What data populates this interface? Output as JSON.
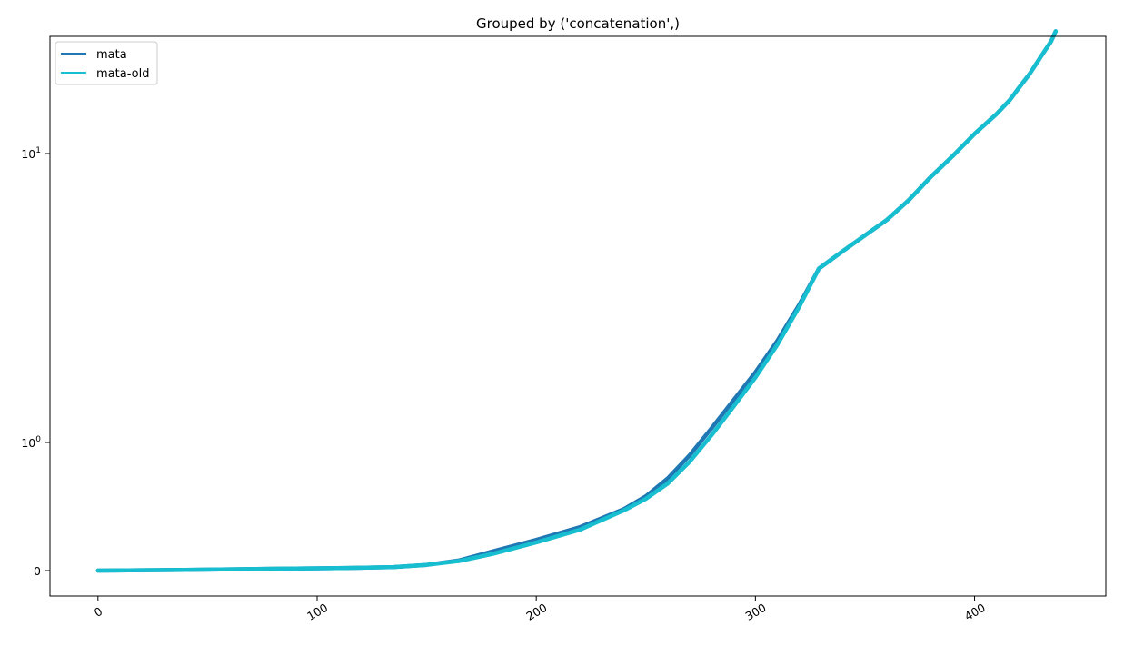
{
  "chart_data": {
    "type": "line",
    "title": "Grouped by ('concatenation',)",
    "xlabel": "",
    "ylabel": "",
    "xlim": [
      -21.9,
      459.9
    ],
    "x_ticks": [
      0,
      100,
      200,
      300,
      400
    ],
    "y_scale": "symlog",
    "y_tick_values": [
      0,
      1,
      10
    ],
    "y_ticks": [
      "0",
      "10",
      "10"
    ],
    "y_tick_exponents": [
      "",
      "0",
      "1"
    ],
    "legend": "upper-left",
    "grid": false,
    "series": [
      {
        "name": "mata",
        "color": "#1f77b4",
        "points": [
          [
            0,
            0
          ],
          [
            20,
            0.003
          ],
          [
            40,
            0.006
          ],
          [
            60,
            0.01
          ],
          [
            80,
            0.014
          ],
          [
            100,
            0.018
          ],
          [
            120,
            0.022
          ],
          [
            135,
            0.028
          ],
          [
            150,
            0.045
          ],
          [
            165,
            0.08
          ],
          [
            180,
            0.15
          ],
          [
            200,
            0.24
          ],
          [
            220,
            0.34
          ],
          [
            240,
            0.48
          ],
          [
            250,
            0.58
          ],
          [
            260,
            0.72
          ],
          [
            270,
            0.9
          ],
          [
            280,
            1.12
          ],
          [
            290,
            1.4
          ],
          [
            300,
            1.75
          ],
          [
            310,
            2.25
          ],
          [
            320,
            3.0
          ],
          [
            329,
            4.0
          ],
          [
            340,
            4.6
          ],
          [
            360,
            5.9
          ],
          [
            370,
            6.9
          ],
          [
            380,
            8.3
          ],
          [
            390,
            9.8
          ],
          [
            400,
            11.7
          ],
          [
            410,
            13.7
          ],
          [
            416,
            15.3
          ],
          [
            420,
            16.8
          ],
          [
            425,
            18.8
          ],
          [
            430,
            21.5
          ],
          [
            435,
            24.5
          ],
          [
            437,
            26.5
          ]
        ]
      },
      {
        "name": "mata-old",
        "color": "#17becf",
        "points": [
          [
            0,
            0
          ],
          [
            20,
            0.003
          ],
          [
            40,
            0.006
          ],
          [
            60,
            0.01
          ],
          [
            80,
            0.014
          ],
          [
            100,
            0.018
          ],
          [
            120,
            0.022
          ],
          [
            135,
            0.028
          ],
          [
            150,
            0.045
          ],
          [
            165,
            0.075
          ],
          [
            180,
            0.13
          ],
          [
            200,
            0.22
          ],
          [
            220,
            0.32
          ],
          [
            240,
            0.47
          ],
          [
            250,
            0.56
          ],
          [
            260,
            0.68
          ],
          [
            270,
            0.85
          ],
          [
            280,
            1.06
          ],
          [
            290,
            1.33
          ],
          [
            300,
            1.68
          ],
          [
            310,
            2.18
          ],
          [
            320,
            2.95
          ],
          [
            329,
            4.0
          ],
          [
            340,
            4.6
          ],
          [
            360,
            5.9
          ],
          [
            370,
            6.9
          ],
          [
            380,
            8.3
          ],
          [
            390,
            9.8
          ],
          [
            400,
            11.7
          ],
          [
            410,
            13.7
          ],
          [
            416,
            15.3
          ],
          [
            420,
            16.8
          ],
          [
            425,
            18.8
          ],
          [
            430,
            21.5
          ],
          [
            435,
            24.5
          ],
          [
            437,
            26.5
          ]
        ]
      }
    ]
  }
}
